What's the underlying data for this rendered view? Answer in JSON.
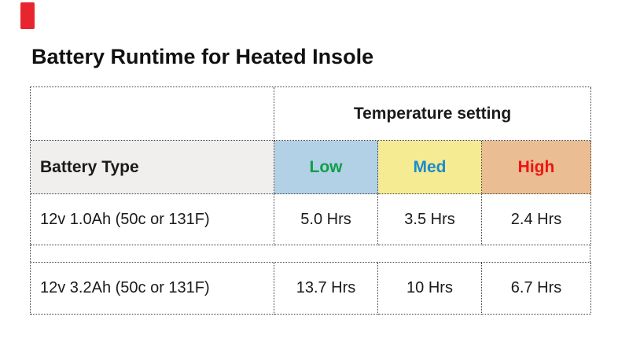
{
  "title": "Battery Runtime for Heated Insole",
  "decoration": {
    "red_marker_color": "#e8252e",
    "red_marker_style": "background-color:#e8252e"
  },
  "colors": {
    "border": "#3c3c3c",
    "battery_type_header_bg": "#f0efed",
    "title_text": "#111111"
  },
  "table": {
    "header": {
      "temperature_setting_label": "Temperature setting",
      "battery_type_label": "Battery Type",
      "settings": [
        {
          "label": "Low",
          "text_color": "#0fa046",
          "bg_color": "#b2d1e7",
          "style": "background-color:#b2d1e7;color:#0fa046"
        },
        {
          "label": "Med",
          "text_color": "#1b8ccc",
          "bg_color": "#f5eb93",
          "style": "background-color:#f5eb93;color:#1b8ccc"
        },
        {
          "label": "High",
          "text_color": "#ee1414",
          "bg_color": "#eabd92",
          "style": "background-color:#eabd92;color:#ee1414"
        }
      ]
    },
    "rows": [
      {
        "battery_type": "12v 1.0Ah (50c or 131F)",
        "low": "5.0 Hrs",
        "med": "3.5 Hrs",
        "high": "2.4 Hrs"
      },
      {
        "battery_type": "12v 3.2Ah (50c or 131F)",
        "low": "13.7 Hrs",
        "med": "10 Hrs",
        "high": "6.7 Hrs"
      }
    ]
  }
}
